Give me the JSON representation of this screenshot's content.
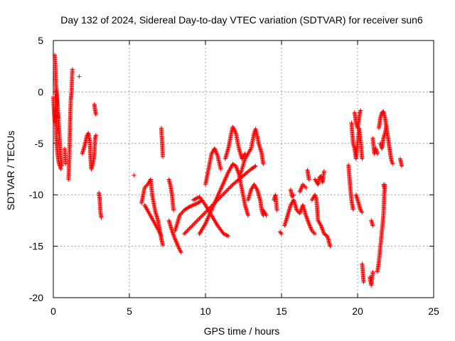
{
  "chart_data": {
    "type": "scatter",
    "title": "Day 132 of 2024, Sidereal Day-to-day VTEC variation (SDTVAR) for receiver sun6",
    "xlabel": "GPS time / hours",
    "ylabel": "SDTVAR / TECUs",
    "xlim": [
      0,
      25
    ],
    "ylim": [
      -20,
      5
    ],
    "xticks": [
      0,
      5,
      10,
      15,
      20,
      25
    ],
    "yticks": [
      -20,
      -15,
      -10,
      -5,
      0,
      5
    ],
    "grid": true,
    "marker": "+",
    "series": [
      {
        "name": "SDTVAR",
        "color": "#ff0000",
        "segments": [
          [
            [
              0.0,
              -0.5
            ],
            [
              0.05,
              -2.0
            ],
            [
              0.1,
              -3.0
            ],
            [
              0.15,
              -1.5
            ],
            [
              0.2,
              -4.5
            ],
            [
              0.25,
              -5.5
            ],
            [
              0.3,
              -6.3
            ],
            [
              0.35,
              -6.8
            ],
            [
              0.4,
              -7.1
            ],
            [
              0.45,
              -7.3
            ],
            [
              0.5,
              -7.5
            ]
          ],
          [
            [
              0.2,
              0.3
            ],
            [
              0.25,
              -0.8
            ],
            [
              0.3,
              -1.8
            ],
            [
              0.35,
              -3.2
            ],
            [
              0.4,
              -4.2
            ],
            [
              0.45,
              -5.5
            ],
            [
              0.5,
              -6.5
            ],
            [
              0.55,
              -7.2
            ]
          ],
          [
            [
              0.1,
              3.6
            ],
            [
              0.15,
              1.7
            ],
            [
              0.2,
              0.0
            ],
            [
              0.25,
              -1.7
            ],
            [
              0.3,
              -2.5
            ]
          ],
          [
            [
              0.75,
              -5.5
            ],
            [
              0.8,
              -7.0
            ]
          ],
          [
            [
              1.0,
              -8.5
            ],
            [
              1.05,
              -6.5
            ],
            [
              1.1,
              -3.0
            ],
            [
              1.15,
              -0.7
            ],
            [
              1.2,
              0.0
            ],
            [
              1.25,
              2.2
            ]
          ],
          [
            [
              1.7,
              1.5
            ]
          ],
          [
            [
              1.9,
              -6.0
            ],
            [
              2.0,
              -5.5
            ],
            [
              2.1,
              -5.0
            ],
            [
              2.2,
              -4.3
            ],
            [
              2.3,
              -4.0
            ],
            [
              2.4,
              -4.8
            ],
            [
              2.45,
              -6.5
            ],
            [
              2.5,
              -7.5
            ],
            [
              2.6,
              -7.0
            ],
            [
              2.7,
              -6.0
            ],
            [
              2.75,
              -4.5
            ],
            [
              2.8,
              -4.2
            ]
          ],
          [
            [
              2.7,
              -1.2
            ],
            [
              2.75,
              -1.8
            ],
            [
              2.8,
              -2.2
            ]
          ],
          [
            [
              3.0,
              -9.8
            ],
            [
              3.05,
              -10.4
            ],
            [
              3.1,
              -11.7
            ],
            [
              3.15,
              -12.2
            ]
          ],
          [
            [
              5.3,
              -8.1
            ]
          ],
          [
            [
              5.8,
              -10.8
            ],
            [
              6.0,
              -9.3
            ],
            [
              6.2,
              -9.0
            ],
            [
              6.4,
              -8.5
            ],
            [
              6.5,
              -10.0
            ],
            [
              6.7,
              -11.6
            ],
            [
              6.9,
              -12.6
            ],
            [
              7.0,
              -13.5
            ],
            [
              7.1,
              -14.3
            ],
            [
              7.2,
              -14.9
            ]
          ],
          [
            [
              6.0,
              -11.0
            ],
            [
              6.3,
              -11.8
            ],
            [
              6.6,
              -12.6
            ],
            [
              6.9,
              -13.4
            ],
            [
              7.1,
              -14.0
            ]
          ],
          [
            [
              7.1,
              -3.5
            ],
            [
              7.2,
              -6.3
            ]
          ],
          [
            [
              7.6,
              -8.5
            ],
            [
              7.7,
              -9.1
            ],
            [
              7.8,
              -10.0
            ],
            [
              7.9,
              -11.5
            ]
          ],
          [
            [
              7.6,
              -12.5
            ],
            [
              7.8,
              -13.5
            ],
            [
              8.0,
              -14.3
            ],
            [
              8.2,
              -15.0
            ],
            [
              8.4,
              -15.6
            ]
          ],
          [
            [
              8.0,
              -13.5
            ],
            [
              8.3,
              -12.0
            ],
            [
              8.6,
              -11.5
            ],
            [
              8.9,
              -11.2
            ],
            [
              9.2,
              -11.0
            ],
            [
              9.5,
              -10.8
            ],
            [
              9.8,
              -10.5
            ]
          ],
          [
            [
              8.6,
              -13.8
            ],
            [
              9.0,
              -13.2
            ],
            [
              9.4,
              -12.6
            ],
            [
              9.8,
              -12.0
            ],
            [
              10.2,
              -11.4
            ],
            [
              10.6,
              -10.8
            ],
            [
              11.0,
              -10.2
            ],
            [
              11.4,
              -9.6
            ],
            [
              11.8,
              -9.0
            ],
            [
              12.2,
              -8.5
            ],
            [
              12.6,
              -8.0
            ],
            [
              13.0,
              -7.5
            ],
            [
              13.3,
              -7.2
            ]
          ],
          [
            [
              9.2,
              -10.5
            ],
            [
              9.6,
              -10.2
            ],
            [
              10.0,
              -11.0
            ],
            [
              10.4,
              -12.0
            ],
            [
              10.8,
              -13.0
            ],
            [
              11.2,
              -13.8
            ],
            [
              11.5,
              -14.0
            ]
          ],
          [
            [
              9.6,
              -13.8
            ],
            [
              10.0,
              -12.8
            ],
            [
              10.3,
              -11.8
            ],
            [
              10.6,
              -10.8
            ],
            [
              10.9,
              -9.8
            ],
            [
              11.2,
              -8.8
            ],
            [
              11.5,
              -7.8
            ],
            [
              11.8,
              -7.0
            ],
            [
              12.0,
              -7.2
            ],
            [
              12.2,
              -8.0
            ],
            [
              12.4,
              -9.5
            ],
            [
              12.6,
              -11.0
            ],
            [
              12.8,
              -12.0
            ]
          ],
          [
            [
              10.0,
              -9.0
            ],
            [
              10.2,
              -7.5
            ],
            [
              10.4,
              -6.0
            ],
            [
              10.6,
              -5.5
            ],
            [
              10.8,
              -6.2
            ],
            [
              11.0,
              -7.5
            ]
          ],
          [
            [
              11.3,
              -6.5
            ],
            [
              11.5,
              -5.5
            ],
            [
              11.7,
              -4.0
            ],
            [
              11.8,
              -3.4
            ],
            [
              12.0,
              -4.0
            ],
            [
              12.2,
              -5.5
            ],
            [
              12.4,
              -6.5
            ],
            [
              12.6,
              -6.0
            ]
          ],
          [
            [
              12.3,
              -8.0
            ],
            [
              12.6,
              -6.5
            ],
            [
              12.8,
              -6.0
            ],
            [
              13.0,
              -5.5
            ],
            [
              13.2,
              -4.0
            ],
            [
              13.3,
              -3.6
            ],
            [
              13.5,
              -5.0
            ],
            [
              13.7,
              -6.0
            ],
            [
              13.8,
              -7.0
            ]
          ],
          [
            [
              12.8,
              -10.5
            ],
            [
              13.0,
              -9.5
            ],
            [
              13.2,
              -9.0
            ],
            [
              13.4,
              -9.5
            ],
            [
              13.6,
              -10.5
            ],
            [
              13.7,
              -11.5
            ],
            [
              13.8,
              -12.0
            ]
          ],
          [
            [
              13.8,
              -11.5
            ],
            [
              14.0,
              -12.0
            ]
          ],
          [
            [
              14.5,
              -10.5
            ],
            [
              14.6,
              -10.0
            ],
            [
              14.7,
              -11.5
            ]
          ],
          [
            [
              14.9,
              -13.6
            ],
            [
              15.0,
              -13.8
            ]
          ],
          [
            [
              15.2,
              -13.0
            ],
            [
              15.4,
              -12.0
            ],
            [
              15.6,
              -11.0
            ],
            [
              15.8,
              -10.5
            ],
            [
              16.0,
              -11.5
            ],
            [
              16.2,
              -11.8
            ],
            [
              16.4,
              -11.0
            ],
            [
              16.6,
              -12.0
            ],
            [
              16.8,
              -12.8
            ],
            [
              17.0,
              -13.5
            ],
            [
              17.2,
              -13.8
            ]
          ],
          [
            [
              15.6,
              -9.5
            ],
            [
              15.7,
              -10.2
            ],
            [
              15.8,
              -10.0
            ]
          ],
          [
            [
              16.2,
              -9.7
            ],
            [
              16.4,
              -9.0
            ],
            [
              16.6,
              -9.3
            ]
          ],
          [
            [
              16.7,
              -7.6
            ],
            [
              16.8,
              -8.5
            ]
          ],
          [
            [
              17.0,
              -10.5
            ],
            [
              17.2,
              -10.0
            ],
            [
              17.3,
              -10.5
            ],
            [
              17.4,
              -12.5
            ],
            [
              17.6,
              -13.0
            ],
            [
              17.8,
              -13.8
            ],
            [
              18.0,
              -14.0
            ],
            [
              18.1,
              -14.4
            ]
          ],
          [
            [
              17.2,
              -8.5
            ],
            [
              17.4,
              -9.0
            ],
            [
              17.5,
              -8.3
            ],
            [
              17.6,
              -8.2
            ],
            [
              17.7,
              -8.8
            ],
            [
              17.8,
              -7.7
            ]
          ],
          [
            [
              18.1,
              -14.5
            ],
            [
              18.2,
              -15.0
            ]
          ],
          [
            [
              19.4,
              -7.1
            ],
            [
              19.5,
              -9.0
            ],
            [
              19.6,
              -10.5
            ],
            [
              19.7,
              -11.4
            ]
          ],
          [
            [
              19.6,
              -3.0
            ],
            [
              19.7,
              -5.0
            ],
            [
              19.8,
              -5.5
            ],
            [
              19.9,
              -6.5
            ],
            [
              20.0,
              -5.0
            ],
            [
              20.1,
              -3.5
            ],
            [
              20.2,
              -4.8
            ],
            [
              20.3,
              -6.5
            ]
          ],
          [
            [
              19.8,
              -2.0
            ],
            [
              19.9,
              -3.0
            ],
            [
              20.0,
              -3.5
            ],
            [
              20.1,
              -2.5
            ],
            [
              20.15,
              -2.0
            ],
            [
              20.2,
              -1.8
            ]
          ],
          [
            [
              19.9,
              -10.0
            ],
            [
              20.0,
              -10.5
            ],
            [
              20.1,
              -11.0
            ],
            [
              20.2,
              -11.5
            ],
            [
              20.3,
              -11.7
            ]
          ],
          [
            [
              20.3,
              -16.7
            ],
            [
              20.4,
              -18.5
            ]
          ],
          [
            [
              20.8,
              -18.0
            ],
            [
              20.9,
              -18.8
            ],
            [
              21.0,
              -17.5
            ]
          ],
          [
            [
              20.9,
              -12.5
            ],
            [
              21.0,
              -13.0
            ]
          ],
          [
            [
              21.0,
              -4.5
            ],
            [
              21.1,
              -6.0
            ],
            [
              21.2,
              -5.5
            ],
            [
              21.3,
              -6.0
            ]
          ],
          [
            [
              21.3,
              -17.5
            ],
            [
              21.4,
              -16.5
            ],
            [
              21.5,
              -15.0
            ],
            [
              21.6,
              -13.5
            ],
            [
              21.7,
              -12.0
            ],
            [
              21.75,
              -10.0
            ],
            [
              21.8,
              -9.0
            ]
          ],
          [
            [
              21.4,
              -3.5
            ],
            [
              21.5,
              -2.5
            ],
            [
              21.6,
              -2.0
            ],
            [
              21.7,
              -1.9
            ],
            [
              21.8,
              -2.5
            ],
            [
              21.9,
              -3.5
            ],
            [
              22.0,
              -4.5
            ],
            [
              22.1,
              -5.5
            ],
            [
              22.2,
              -6.5
            ],
            [
              22.3,
              -7.0
            ]
          ],
          [
            [
              21.5,
              -5.0
            ],
            [
              21.6,
              -5.5
            ],
            [
              21.7,
              -4.5
            ],
            [
              21.8,
              -4.0
            ],
            [
              21.9,
              -3.3
            ]
          ],
          [
            [
              21.7,
              -9.0
            ],
            [
              21.8,
              -9.5
            ]
          ],
          [
            [
              22.8,
              -6.5
            ],
            [
              22.9,
              -7.2
            ]
          ]
        ]
      }
    ]
  }
}
